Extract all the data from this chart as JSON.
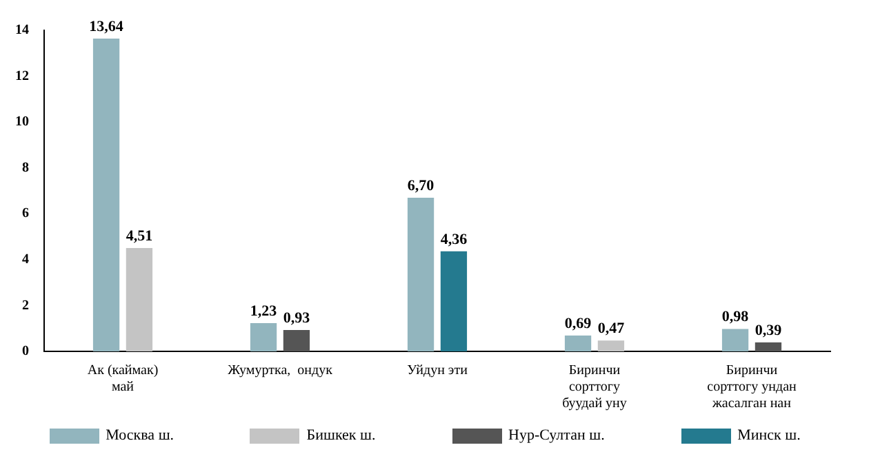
{
  "chart_data": {
    "type": "bar",
    "categories": [
      "Ак (каймак)\nмай",
      "Жумуртка,  ондук",
      "Уйдун эти",
      "Биринчи\nсорттогу\nбуудай уну",
      "Биринчи\nсорттогу ундан\nжасалган нан"
    ],
    "series": [
      {
        "name": "Москва ш.",
        "color": "#92b5be",
        "values": [
          13.64,
          1.23,
          6.7,
          0.69,
          0.98
        ],
        "value_labels": [
          "13,64",
          "1,23",
          "6,70",
          "0,69",
          "0,98"
        ]
      },
      {
        "name": "Бишкек ш.",
        "color": "#c4c4c4",
        "values": [
          4.51,
          null,
          null,
          0.47,
          null
        ],
        "value_labels": [
          "4,51",
          null,
          null,
          "0,47",
          null
        ]
      },
      {
        "name": "Нур-Султан ш.",
        "color": "#555555",
        "values": [
          null,
          0.93,
          null,
          null,
          0.39
        ],
        "value_labels": [
          null,
          "0,93",
          null,
          null,
          "0,39"
        ]
      },
      {
        "name": "Минск ш.",
        "color": "#247a8f",
        "values": [
          null,
          null,
          4.36,
          null,
          null
        ],
        "value_labels": [
          null,
          null,
          "4,36",
          null,
          null
        ]
      }
    ],
    "ylim": [
      0,
      14
    ],
    "yticks": [
      0,
      2,
      4,
      6,
      8,
      10,
      12,
      14
    ],
    "grid": false,
    "legend": "bottom"
  }
}
